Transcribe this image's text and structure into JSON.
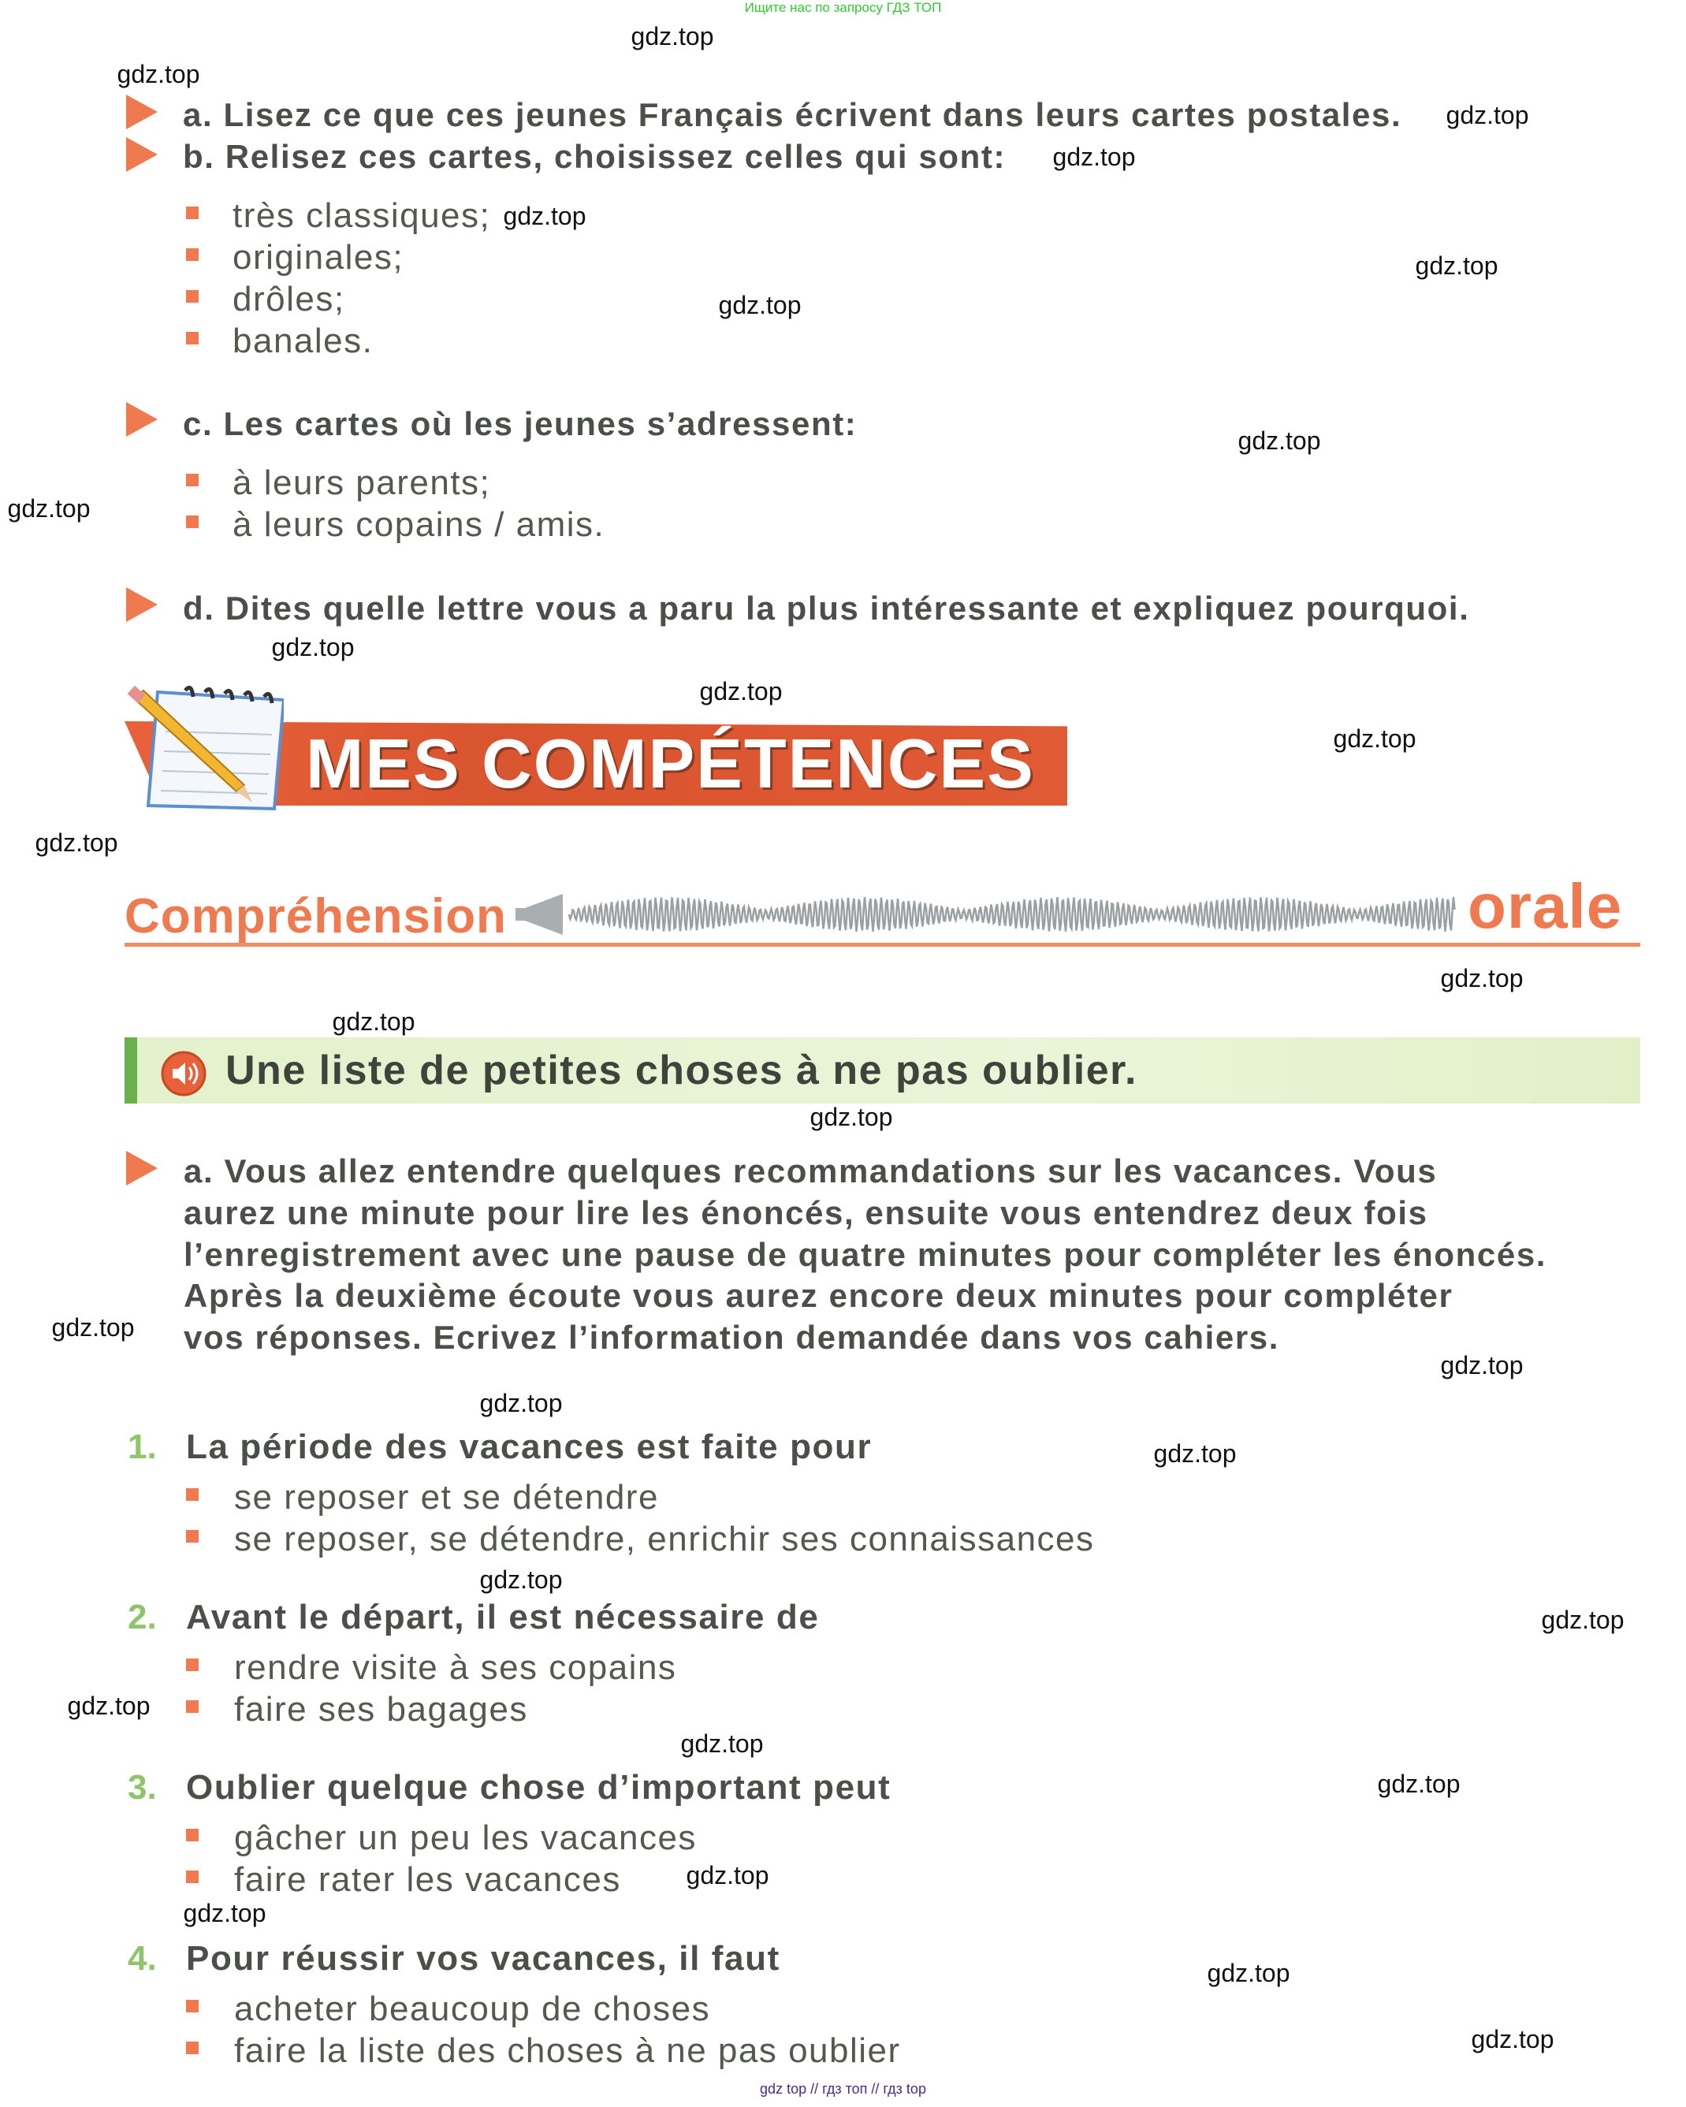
{
  "top_note": "Ищите нас по запросу ГДЗ ТОП",
  "watermark": "gdz.top",
  "footer": "gdz top  //  гдз топ  //  гдз top",
  "colors": {
    "accent_orange": "#f07a4f",
    "banner_red": "#e05a34",
    "number_green": "#8fc46a",
    "band_green": "#e3f1cc",
    "text": "#4b4e49"
  },
  "part1": {
    "a": "a. Lisez ce que ces jeunes Français écrivent dans leurs cartes postales.",
    "b": "b. Relisez ces cartes, choisissez celles qui sont:",
    "b_options": [
      "très classiques;",
      "originales;",
      "drôles;",
      "banales."
    ],
    "c": "c. Les cartes où les jeunes s’adressent:",
    "c_options": [
      "à leurs parents;",
      "à leurs copains / amis."
    ],
    "d": "d. Dites quelle lettre vous a paru la plus intéressante et expliquez pourquoi."
  },
  "banner": {
    "title": "MES COMPÉTENCES",
    "icon": "notepad-pencil-icon"
  },
  "section": {
    "left": "Compréhension",
    "right": "orale",
    "icon": "megaphone-soundwave-icon"
  },
  "exercise": {
    "title": "Une liste de petites choses à ne pas oublier.",
    "icon": "speaker-icon",
    "instructions": [
      "a. Vous allez entendre quelques recommandations sur les vacances. Vous",
      "aurez une minute pour lire les énoncés, ensuite vous entendrez deux fois",
      "l’enregistrement avec une pause de quatre minutes pour compléter les énoncés.",
      "Après la deuxième écoute vous aurez encore deux minutes pour compléter",
      "vos réponses. Ecrivez l’information demandée dans vos cahiers."
    ],
    "questions": [
      {
        "num": "1.",
        "text": "La période des vacances est faite pour",
        "options": [
          "se reposer et se détendre",
          "se reposer, se détendre, enrichir ses connaissances"
        ]
      },
      {
        "num": "2.",
        "text": "Avant le départ, il est nécessaire de",
        "options": [
          "rendre visite à ses copains",
          "faire ses bagages"
        ]
      },
      {
        "num": "3.",
        "text": "Oublier quelque chose d’important peut",
        "options": [
          "gâcher un peu les vacances",
          "faire rater les vacances"
        ]
      },
      {
        "num": "4.",
        "text": "Pour réussir vos vacances, il faut",
        "options": [
          "acheter beaucoup de choses",
          "faire la liste des choses à ne pas oublier"
        ]
      }
    ]
  }
}
